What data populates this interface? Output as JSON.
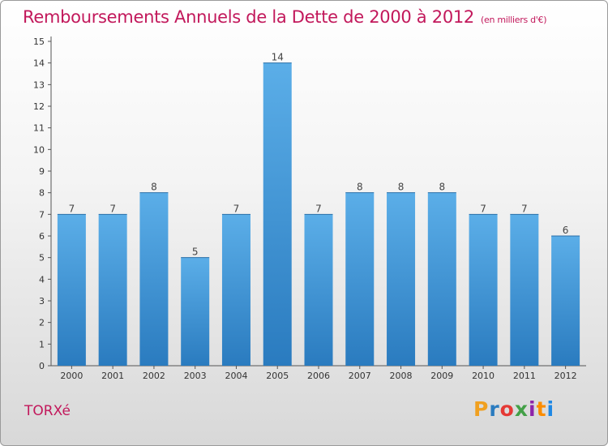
{
  "header": {
    "title": "Remboursements Annuels de la Dette de 2000 à 2012",
    "subtitle": "(en milliers d'€)"
  },
  "footer": {
    "place": "TORXé",
    "logo_text": "Proxiti"
  },
  "colors": {
    "title": "#c2185b",
    "bar_top": "#5baee8",
    "bar_bottom": "#2a7bbf"
  },
  "chart_data": {
    "type": "bar",
    "title": "Remboursements Annuels de la Dette de 2000 à 2012",
    "subtitle": "(en milliers d'€)",
    "categories": [
      "2000",
      "2001",
      "2002",
      "2003",
      "2004",
      "2005",
      "2006",
      "2007",
      "2008",
      "2009",
      "2010",
      "2011",
      "2012"
    ],
    "values": [
      7,
      7,
      8,
      5,
      7,
      14,
      7,
      8,
      8,
      8,
      7,
      7,
      6
    ],
    "ylim": [
      0,
      15
    ],
    "yticks": [
      0,
      1,
      2,
      3,
      4,
      5,
      6,
      7,
      8,
      9,
      10,
      11,
      12,
      13,
      14,
      15
    ],
    "grid": false,
    "data_labels": true
  }
}
